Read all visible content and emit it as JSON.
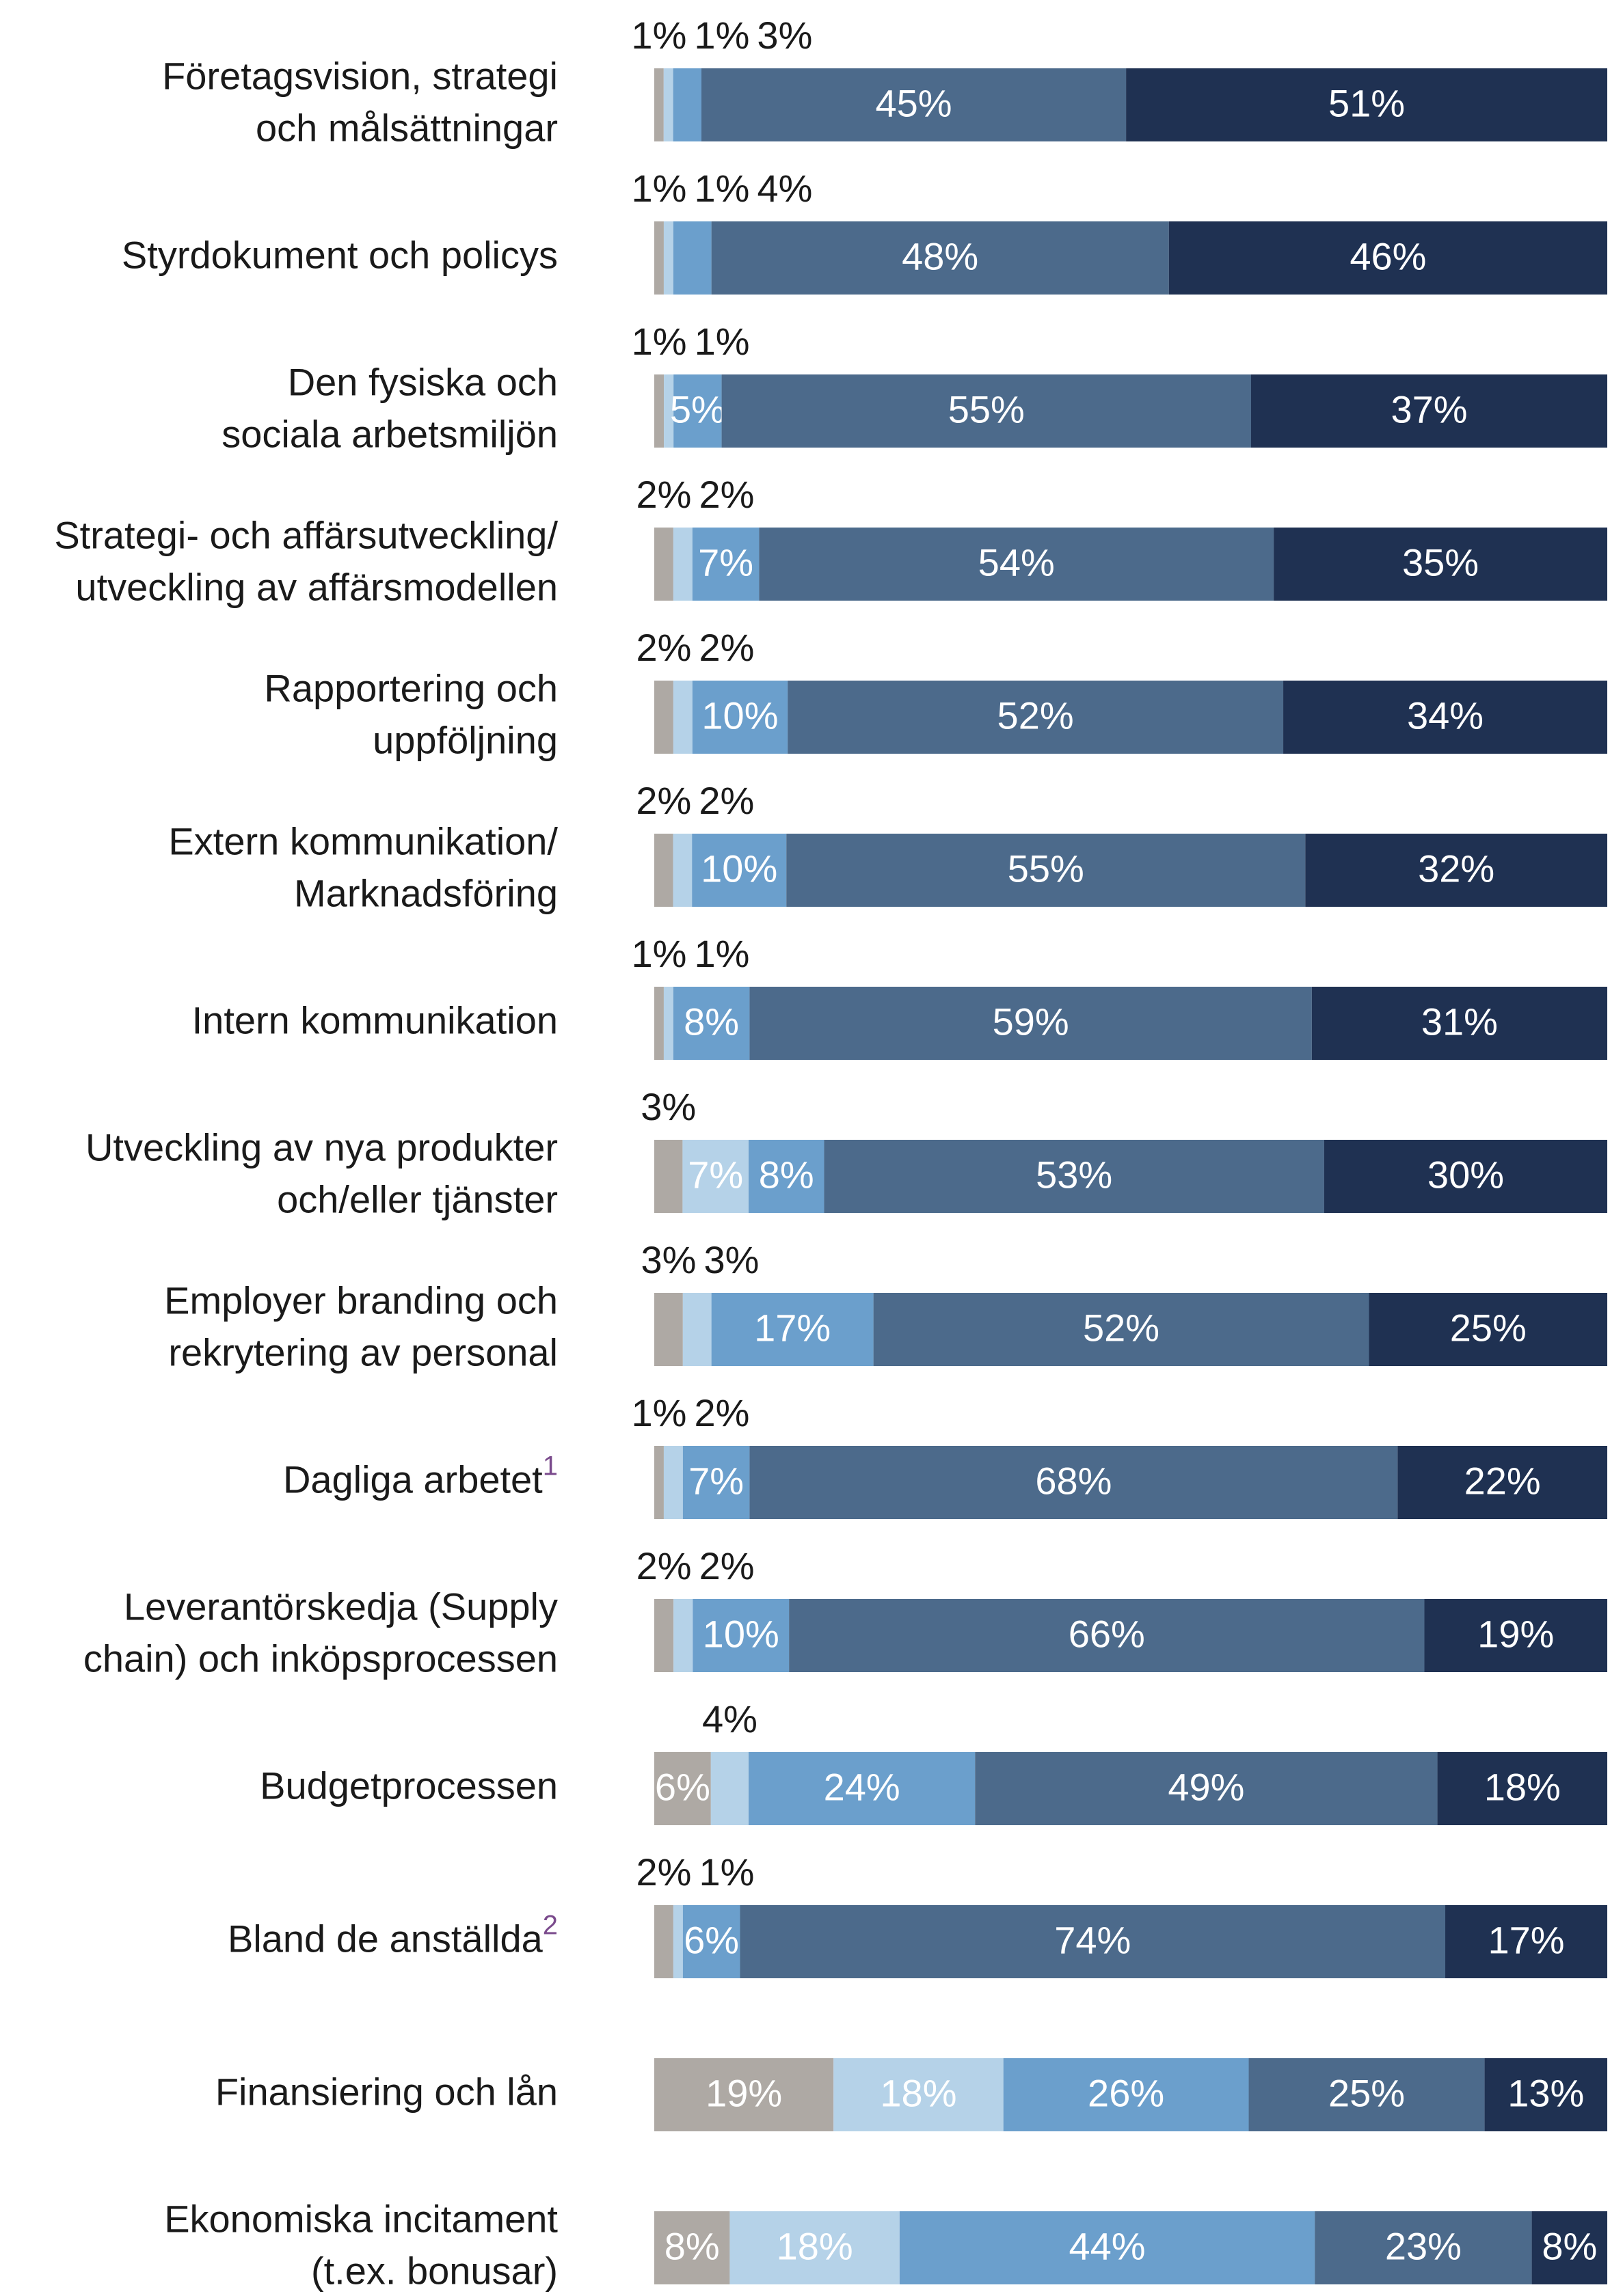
{
  "chart_data": {
    "type": "stacked-bar-horizontal",
    "categories": [
      "Företagsvision, strategi\noch målsättningar",
      "Styrdokument och policys",
      "Den fysiska och\nsociala arbetsmiljön",
      "Strategi- och affärsutveckling/\nutveckling av affärsmodellen",
      "Rapportering och\nuppföljning",
      "Extern kommunikation/\nMarknadsföring",
      "Intern kommunikation",
      "Utveckling av nya produkter\noch/eller tjänster",
      "Employer branding och\nrekrytering av personal",
      "Dagliga arbetet",
      "Leverantörskedja (Supply\nchain) och inköpsprocessen",
      "Budgetprocessen",
      "Bland de anställda",
      "Finansiering och lån",
      "Ekonomiska incitament\n(t.ex. bonusar)"
    ],
    "category_notes": [
      null,
      null,
      null,
      null,
      null,
      null,
      null,
      null,
      null,
      "1",
      null,
      null,
      "2",
      null,
      null
    ],
    "series": [
      {
        "color": "#aea9a4",
        "values": [
          1,
          1,
          1,
          2,
          2,
          2,
          1,
          3,
          3,
          1,
          2,
          6,
          2,
          19,
          8
        ],
        "value_labels": [
          "1%",
          "1%",
          "1%",
          "2%",
          "2%",
          "2%",
          "1%",
          "3%",
          "3%",
          "1%",
          "2%",
          "6%",
          "2%",
          "19%",
          "8%"
        ]
      },
      {
        "color": "#b5d2e8",
        "values": [
          1,
          1,
          1,
          2,
          2,
          2,
          1,
          7,
          3,
          2,
          2,
          4,
          1,
          18,
          18
        ],
        "value_labels": [
          "1%",
          "1%",
          "1%",
          "2%",
          "2%",
          "2%",
          "1%",
          "7%",
          "3%",
          "2%",
          "2%",
          "4%",
          "1%",
          "18%",
          "18%"
        ]
      },
      {
        "color": "#6b9fcc",
        "values": [
          3,
          4,
          5,
          7,
          10,
          10,
          8,
          8,
          17,
          7,
          10,
          24,
          6,
          26,
          44
        ],
        "value_labels": [
          "3%",
          "4%",
          "5%",
          "7%",
          "10%",
          "10%",
          "8%",
          "8%",
          "17%",
          "7%",
          "10%",
          "24%",
          "6%",
          "26%",
          "44%"
        ]
      },
      {
        "color": "#4c6a8b",
        "values": [
          45,
          48,
          55,
          54,
          52,
          55,
          59,
          53,
          52,
          68,
          66,
          49,
          74,
          25,
          23
        ],
        "value_labels": [
          "45%",
          "48%",
          "55%",
          "54%",
          "52%",
          "55%",
          "59%",
          "53%",
          "52%",
          "68%",
          "66%",
          "49%",
          "74%",
          "25%",
          "23%"
        ]
      },
      {
        "color": "#1f3152",
        "values": [
          51,
          46,
          37,
          35,
          34,
          32,
          31,
          30,
          25,
          22,
          19,
          18,
          17,
          13,
          8
        ],
        "value_labels": [
          "51%",
          "46%",
          "37%",
          "35%",
          "34%",
          "32%",
          "31%",
          "30%",
          "25%",
          "22%",
          "19%",
          "18%",
          "17%",
          "13%",
          "8%"
        ]
      }
    ]
  }
}
